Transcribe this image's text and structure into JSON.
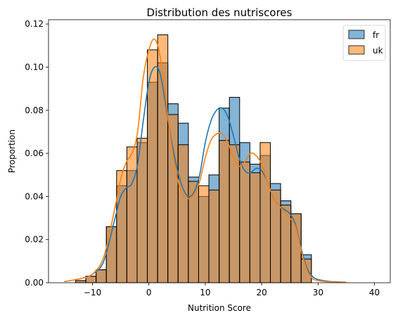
{
  "chart_data": {
    "type": "histogram",
    "title": "Distribution des nutriscores",
    "xlabel": "Nutrition Score",
    "ylabel": "Proportion",
    "xlim": [
      -17.8,
      42.8
    ],
    "ylim": [
      0,
      0.122
    ],
    "xticks": [
      -10,
      0,
      10,
      20,
      30,
      40
    ],
    "yticks": [
      0.0,
      0.02,
      0.04,
      0.06,
      0.08,
      0.1,
      0.12
    ],
    "ytick_labels": [
      "0.00",
      "0.02",
      "0.04",
      "0.06",
      "0.08",
      "0.10",
      "0.12"
    ],
    "bin_width": 1.818,
    "bin_starts": [
      -13,
      -11.182,
      -9.364,
      -7.545,
      -5.727,
      -3.909,
      -2.091,
      -0.273,
      1.545,
      3.364,
      5.182,
      7.0,
      8.818,
      10.636,
      12.455,
      14.273,
      16.091,
      17.909,
      19.727,
      21.545,
      23.364,
      25.182,
      27.0
    ],
    "legend_position": "upper right",
    "series": [
      {
        "name": "fr",
        "color": "#1f77b4",
        "values": [
          0.001,
          0.003,
          0.006,
          0.026,
          0.045,
          0.052,
          0.065,
          0.093,
          0.102,
          0.083,
          0.074,
          0.049,
          0.04,
          0.05,
          0.081,
          0.086,
          0.065,
          0.055,
          0.059,
          0.046,
          0.038,
          0.032,
          0.013
        ],
        "kde_x": [
          -15,
          -12,
          -10,
          -8,
          -6,
          -5,
          -4,
          -3,
          -2,
          -1,
          0,
          1,
          2,
          3,
          4,
          5,
          6,
          7,
          8,
          9,
          10,
          11,
          12,
          13,
          14,
          15,
          16,
          17,
          18,
          19,
          20,
          21,
          22,
          23,
          24,
          25,
          26,
          27,
          28,
          29,
          30,
          32,
          35
        ],
        "kde_y": [
          0.0005,
          0.002,
          0.004,
          0.01,
          0.03,
          0.04,
          0.044,
          0.046,
          0.055,
          0.075,
          0.093,
          0.1,
          0.097,
          0.082,
          0.066,
          0.053,
          0.044,
          0.04,
          0.042,
          0.05,
          0.065,
          0.075,
          0.08,
          0.081,
          0.077,
          0.068,
          0.058,
          0.052,
          0.051,
          0.053,
          0.052,
          0.047,
          0.04,
          0.036,
          0.034,
          0.032,
          0.027,
          0.016,
          0.007,
          0.003,
          0.0015,
          0.0006,
          0.0002
        ]
      },
      {
        "name": "uk",
        "color": "#ff7f0e",
        "values": [
          0.001,
          0.003,
          0.006,
          0.026,
          0.052,
          0.063,
          0.067,
          0.108,
          0.115,
          0.078,
          0.064,
          0.047,
          0.045,
          0.043,
          0.066,
          0.064,
          0.056,
          0.051,
          0.065,
          0.043,
          0.036,
          0.032,
          0.011
        ],
        "kde_x": [
          -15,
          -12,
          -10,
          -8,
          -6,
          -5,
          -4,
          -3,
          -2,
          -1,
          0,
          1,
          2,
          3,
          4,
          5,
          6,
          7,
          8,
          9,
          10,
          11,
          12,
          13,
          14,
          15,
          16,
          17,
          18,
          19,
          20,
          21,
          22,
          23,
          24,
          25,
          26,
          27,
          28,
          29,
          30,
          32,
          35
        ],
        "kde_y": [
          0.0005,
          0.002,
          0.004,
          0.012,
          0.035,
          0.048,
          0.056,
          0.06,
          0.07,
          0.095,
          0.108,
          0.113,
          0.105,
          0.085,
          0.064,
          0.049,
          0.041,
          0.039,
          0.041,
          0.047,
          0.058,
          0.066,
          0.069,
          0.069,
          0.065,
          0.058,
          0.054,
          0.056,
          0.06,
          0.059,
          0.055,
          0.047,
          0.04,
          0.036,
          0.033,
          0.03,
          0.026,
          0.015,
          0.006,
          0.002,
          0.001,
          0.0004,
          0.0001
        ]
      }
    ]
  }
}
